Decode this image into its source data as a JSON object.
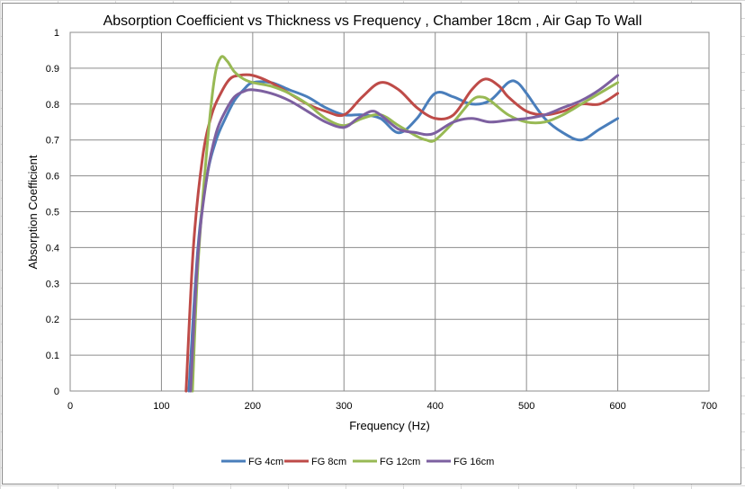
{
  "chart_data": {
    "type": "line",
    "title": "Absorption Coefficient vs Thickness vs Frequency , Chamber 18cm , Air Gap To Wall",
    "xlabel": "Frequency (Hz)",
    "ylabel": "Absorption Coefficient",
    "xlim": [
      0,
      700
    ],
    "ylim": [
      0,
      1
    ],
    "xticks": [
      "0",
      "100",
      "200",
      "300",
      "400",
      "500",
      "600",
      "700"
    ],
    "yticks": [
      "0",
      "0.1",
      "0.2",
      "0.3",
      "0.4",
      "0.5",
      "0.6",
      "0.7",
      "0.8",
      "0.9",
      "1"
    ],
    "grid": true,
    "legend_position": "bottom",
    "series": [
      {
        "name": "FG 4cm",
        "color": "#4a7ebb",
        "x": [
          130,
          140,
          150,
          160,
          170,
          180,
          190,
          200,
          220,
          240,
          260,
          280,
          300,
          320,
          340,
          360,
          380,
          400,
          420,
          440,
          460,
          480,
          490,
          500,
          520,
          540,
          560,
          580,
          600
        ],
        "y": [
          0,
          0.4,
          0.6,
          0.7,
          0.76,
          0.81,
          0.84,
          0.86,
          0.86,
          0.84,
          0.82,
          0.79,
          0.77,
          0.77,
          0.76,
          0.72,
          0.76,
          0.83,
          0.82,
          0.8,
          0.81,
          0.86,
          0.86,
          0.83,
          0.76,
          0.72,
          0.7,
          0.73,
          0.76
        ]
      },
      {
        "name": "FG 8cm",
        "color": "#be4b48",
        "x": [
          127,
          135,
          145,
          155,
          165,
          175,
          185,
          200,
          220,
          240,
          260,
          280,
          300,
          320,
          340,
          360,
          380,
          400,
          420,
          440,
          455,
          470,
          480,
          500,
          520,
          540,
          560,
          580,
          600
        ],
        "y": [
          0,
          0.4,
          0.65,
          0.77,
          0.83,
          0.87,
          0.88,
          0.88,
          0.86,
          0.83,
          0.8,
          0.78,
          0.77,
          0.82,
          0.86,
          0.84,
          0.79,
          0.76,
          0.77,
          0.84,
          0.87,
          0.85,
          0.82,
          0.78,
          0.77,
          0.78,
          0.8,
          0.8,
          0.83
        ]
      },
      {
        "name": "FG 12cm",
        "color": "#98b954",
        "x": [
          134,
          140,
          150,
          158,
          165,
          172,
          180,
          190,
          200,
          220,
          240,
          260,
          280,
          300,
          320,
          340,
          360,
          380,
          390,
          400,
          420,
          440,
          450,
          460,
          480,
          500,
          520,
          540,
          560,
          580,
          600
        ],
        "y": [
          0,
          0.35,
          0.68,
          0.87,
          0.93,
          0.92,
          0.89,
          0.87,
          0.86,
          0.85,
          0.83,
          0.8,
          0.76,
          0.74,
          0.76,
          0.77,
          0.74,
          0.71,
          0.7,
          0.7,
          0.75,
          0.81,
          0.82,
          0.81,
          0.77,
          0.75,
          0.75,
          0.77,
          0.8,
          0.83,
          0.86
        ]
      },
      {
        "name": "FG 16cm",
        "color": "#7d60a0",
        "x": [
          132,
          140,
          150,
          160,
          170,
          180,
          190,
          200,
          220,
          240,
          260,
          280,
          300,
          315,
          330,
          340,
          360,
          380,
          390,
          400,
          420,
          440,
          460,
          480,
          500,
          520,
          540,
          560,
          580,
          600
        ],
        "y": [
          0,
          0.38,
          0.6,
          0.72,
          0.78,
          0.82,
          0.835,
          0.84,
          0.83,
          0.81,
          0.78,
          0.75,
          0.735,
          0.76,
          0.78,
          0.77,
          0.73,
          0.72,
          0.715,
          0.72,
          0.75,
          0.76,
          0.75,
          0.755,
          0.76,
          0.77,
          0.79,
          0.81,
          0.84,
          0.88
        ]
      }
    ]
  }
}
